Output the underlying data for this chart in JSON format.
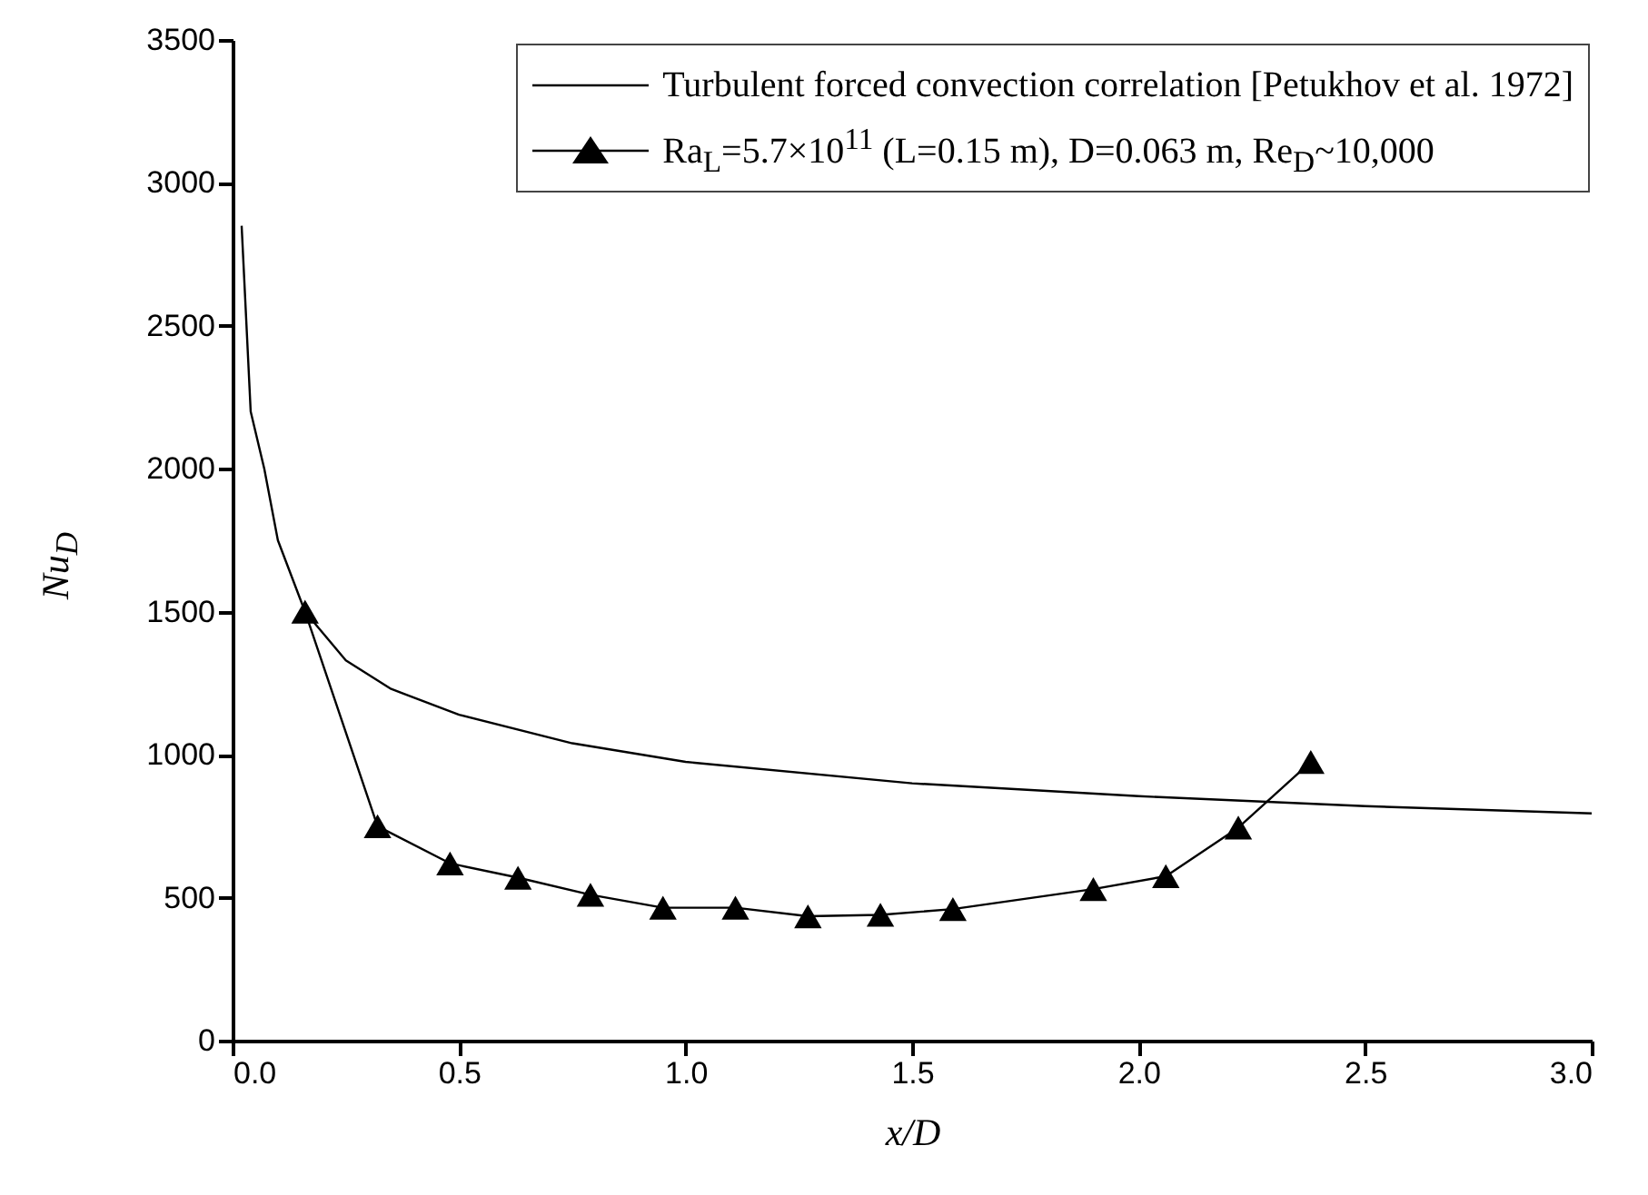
{
  "chart_data": {
    "type": "line",
    "xlabel": "x/D",
    "ylabel": "Nu$_{D}$",
    "xlim": [
      0,
      3.0
    ],
    "ylim": [
      0,
      3500
    ],
    "xticks": [
      {
        "value": 0,
        "label": "0.0"
      },
      0.5,
      {
        "value": 1,
        "label": "1.0"
      },
      1.5,
      {
        "value": 2,
        "label": "2.0"
      },
      2.5,
      {
        "value": 3,
        "label": "3.0"
      }
    ],
    "yticks": [
      0,
      500,
      1000,
      1500,
      2000,
      2500,
      3000,
      3500
    ],
    "legend": "top right",
    "series": [
      {
        "name": "Turbulent forced convection correlation [Petukhov et al. 1972]",
        "color": "#000000",
        "marker": "none",
        "x": [
          0.02,
          0.04,
          0.07,
          0.1,
          0.16,
          0.25,
          0.35,
          0.5,
          0.75,
          1.0,
          1.5,
          2.0,
          2.5,
          3.0
        ],
        "values": [
          2850,
          2200,
          2000,
          1750,
          1500,
          1330,
          1230,
          1140,
          1040,
          975,
          900,
          855,
          820,
          795
        ]
      },
      {
        "name": "Ra$_{L}$=5.7×10$^{11}$ (L=0.15 m), D=0.063 m, Re$_{D}$~10,000",
        "color": "#000000",
        "marker": "triangle",
        "x": [
          0.16,
          0.32,
          0.48,
          0.63,
          0.79,
          0.95,
          1.11,
          1.27,
          1.43,
          1.59,
          1.9,
          2.06,
          2.22,
          2.38
        ],
        "values": [
          1500,
          750,
          620,
          570,
          510,
          465,
          465,
          435,
          440,
          460,
          530,
          575,
          745,
          975
        ]
      }
    ]
  }
}
